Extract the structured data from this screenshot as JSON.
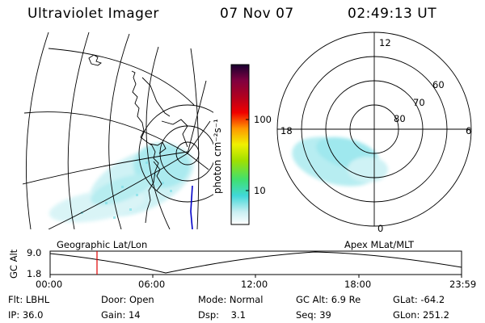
{
  "header": {
    "title": "Ultraviolet Imager",
    "date": "07 Nov 07",
    "time": "02:49:13 UT"
  },
  "colorbar": {
    "label": "photon cm⁻²s⁻¹",
    "ticks": [
      "100",
      "10"
    ]
  },
  "polar": {
    "lat_labels": [
      "60",
      "70",
      "80"
    ],
    "mlt_labels": [
      "12",
      "18",
      "6",
      "0"
    ]
  },
  "panels": {
    "left_label": "Geographic Lat/Lon",
    "right_label": "Apex MLat/MLT"
  },
  "altitude_plot": {
    "ylabel": "GC Alt",
    "yticks": [
      "9.0",
      "1.8"
    ],
    "xticks": [
      "00:00",
      "06:00",
      "12:00",
      "18:00",
      "23:59"
    ]
  },
  "info": {
    "row1": [
      {
        "label": "Flt:",
        "value": "LBHL"
      },
      {
        "label": "Door:",
        "value": "Open"
      },
      {
        "label": "Mode:",
        "value": "Normal"
      },
      {
        "label": "GC Alt:",
        "value": "6.9 Re"
      },
      {
        "label": "GLat:",
        "value": "-64.2"
      }
    ],
    "row2": [
      {
        "label": "IP:",
        "value": "36.0"
      },
      {
        "label": "Gain:",
        "value": "14"
      },
      {
        "label": "Dsp:",
        "value": "3.1"
      },
      {
        "label": "Seq:",
        "value": "39"
      },
      {
        "label": "GLon:",
        "value": "251.2"
      }
    ]
  },
  "colors": {
    "aurora": "#7fe0e8",
    "marker": "#e00000",
    "coast_blue": "#0000c8"
  }
}
